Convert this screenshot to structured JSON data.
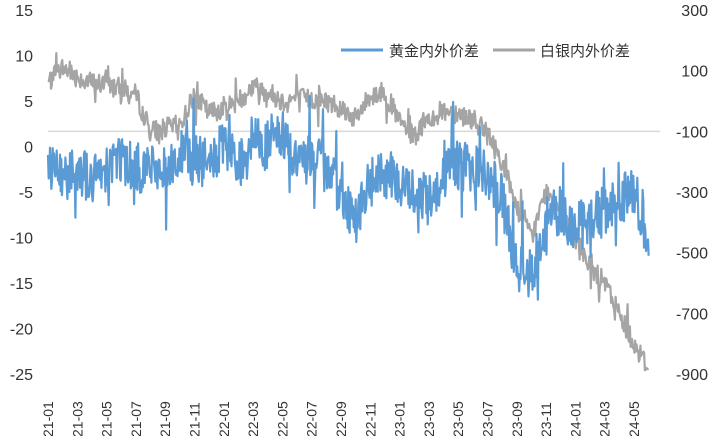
{
  "chart_data": {
    "type": "line",
    "title": "",
    "x_tick_labels": [
      "21-01",
      "21-03",
      "21-05",
      "21-07",
      "21-09",
      "21-11",
      "22-01",
      "22-03",
      "22-05",
      "22-07",
      "22-09",
      "22-11",
      "23-01",
      "23-03",
      "23-05",
      "23-07",
      "23-09",
      "23-11",
      "24-01",
      "24-03",
      "24-05"
    ],
    "left_axis": {
      "ylim": [
        -25,
        15
      ],
      "ticks": [
        "15",
        "10",
        "5",
        "0",
        "-5",
        "-10",
        "-15",
        "-20",
        "-25"
      ]
    },
    "right_axis": {
      "ylim": [
        -900,
        300
      ],
      "ticks": [
        "300",
        "100",
        "-100",
        "-300",
        "-500",
        "-700",
        "-900"
      ]
    },
    "reference_line": {
      "axis": "right",
      "value": -100
    },
    "legend": {
      "position": "top-right"
    },
    "series": [
      {
        "name": "黄金内外价差",
        "axis": "left",
        "color": "#5B9BD5",
        "anchors": [
          [
            "21-01",
            -1.5
          ],
          [
            "21-02",
            -3.5
          ],
          [
            "21-03",
            -2
          ],
          [
            "21-04",
            -4
          ],
          [
            "21-05",
            -2
          ],
          [
            "21-06",
            -1
          ],
          [
            "21-07",
            -2.5
          ],
          [
            "21-08",
            -2
          ],
          [
            "21-09",
            -3
          ],
          [
            "21-10",
            -1
          ],
          [
            "21-11",
            -1.5
          ],
          [
            "21-12",
            -2
          ],
          [
            "22-01",
            0
          ],
          [
            "22-02",
            -2
          ],
          [
            "22-03",
            1
          ],
          [
            "22-04",
            0
          ],
          [
            "22-05",
            1.5
          ],
          [
            "22-06",
            -2
          ],
          [
            "22-07",
            -1
          ],
          [
            "22-08",
            -3
          ],
          [
            "22-09",
            -5
          ],
          [
            "22-10",
            -8
          ],
          [
            "22-11",
            -4
          ],
          [
            "22-12",
            -3
          ],
          [
            "23-01",
            -4
          ],
          [
            "23-02",
            -5
          ],
          [
            "23-03",
            -6
          ],
          [
            "23-04",
            -3
          ],
          [
            "23-05",
            -2
          ],
          [
            "23-06",
            -2.5
          ],
          [
            "23-07",
            -3
          ],
          [
            "23-08",
            -6
          ],
          [
            "23-09",
            -13
          ],
          [
            "23-10",
            -14
          ],
          [
            "23-11",
            -8
          ],
          [
            "23-12",
            -7
          ],
          [
            "24-01",
            -9
          ],
          [
            "24-02",
            -8
          ],
          [
            "24-03",
            -7
          ],
          [
            "24-04",
            -6
          ],
          [
            "24-05",
            -5
          ],
          [
            "24-06",
            -10
          ]
        ]
      },
      {
        "name": "白银内外价差",
        "axis": "right",
        "color": "#A5A5A5",
        "anchors": [
          [
            "21-01",
            60
          ],
          [
            "21-02",
            110
          ],
          [
            "21-03",
            80
          ],
          [
            "21-04",
            60
          ],
          [
            "21-05",
            55
          ],
          [
            "21-06",
            40
          ],
          [
            "21-07",
            20
          ],
          [
            "21-08",
            -100
          ],
          [
            "21-09",
            -90
          ],
          [
            "21-10",
            -80
          ],
          [
            "21-11",
            20
          ],
          [
            "21-12",
            -40
          ],
          [
            "22-01",
            -20
          ],
          [
            "22-02",
            0
          ],
          [
            "22-03",
            50
          ],
          [
            "22-04",
            30
          ],
          [
            "22-05",
            0
          ],
          [
            "22-06",
            10
          ],
          [
            "22-07",
            5
          ],
          [
            "22-08",
            0
          ],
          [
            "22-09",
            -20
          ],
          [
            "22-10",
            -60
          ],
          [
            "22-11",
            20
          ],
          [
            "22-12",
            30
          ],
          [
            "23-01",
            -70
          ],
          [
            "23-02",
            -120
          ],
          [
            "23-03",
            -60
          ],
          [
            "23-04",
            -30
          ],
          [
            "23-05",
            -40
          ],
          [
            "23-06",
            -60
          ],
          [
            "23-07",
            -110
          ],
          [
            "23-08",
            -200
          ],
          [
            "23-09",
            -350
          ],
          [
            "23-10",
            -450
          ],
          [
            "23-11",
            -300
          ],
          [
            "23-12",
            -350
          ],
          [
            "24-01",
            -450
          ],
          [
            "24-02",
            -550
          ],
          [
            "24-03",
            -600
          ],
          [
            "24-04",
            -700
          ],
          [
            "24-05",
            -800
          ],
          [
            "24-06",
            -880
          ]
        ]
      }
    ]
  }
}
